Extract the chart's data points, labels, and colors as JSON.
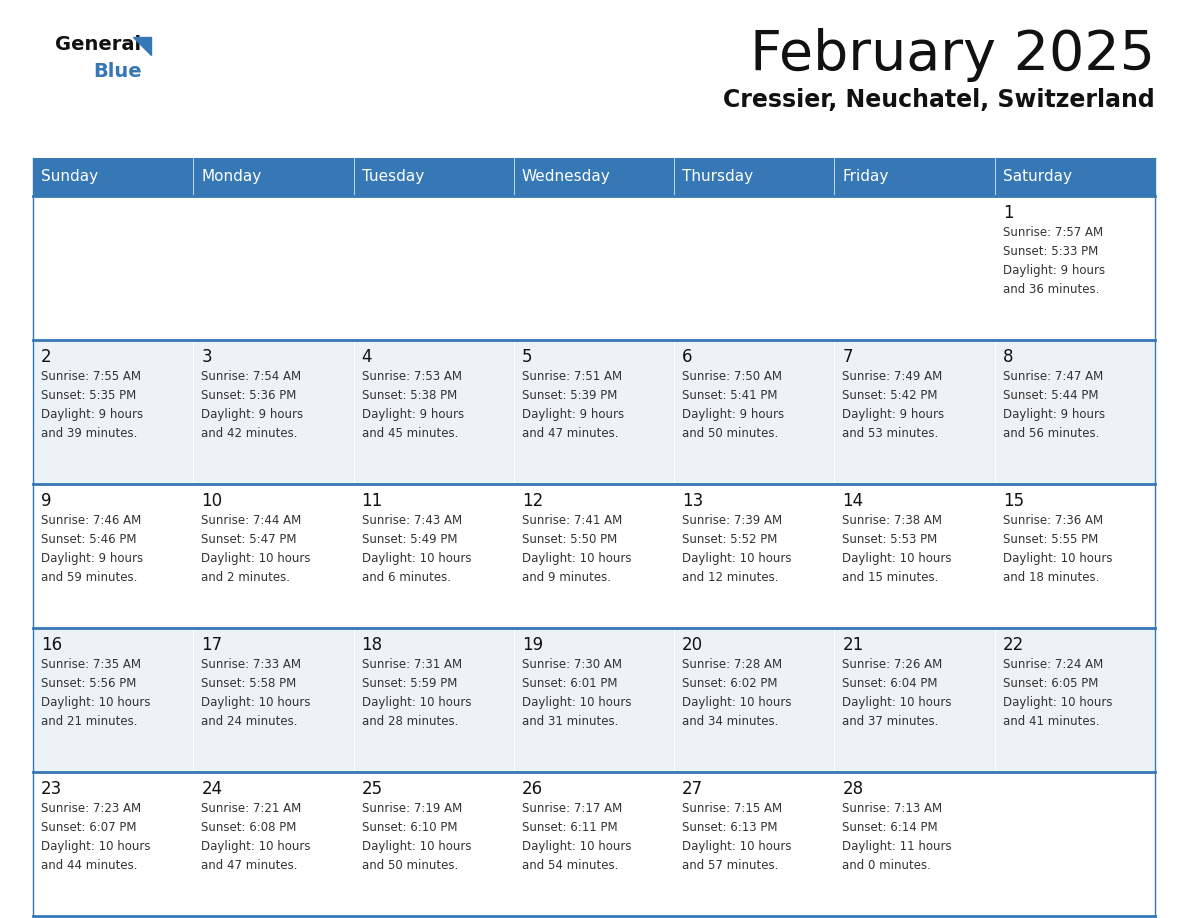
{
  "title": "February 2025",
  "subtitle": "Cressier, Neuchatel, Switzerland",
  "header_color": "#3578b5",
  "header_text_color": "#ffffff",
  "row_bg_odd": "#ffffff",
  "row_bg_even": "#edf2f7",
  "border_color": "#3578b5",
  "days_of_week": [
    "Sunday",
    "Monday",
    "Tuesday",
    "Wednesday",
    "Thursday",
    "Friday",
    "Saturday"
  ],
  "title_color": "#111111",
  "subtitle_color": "#111111",
  "day_number_color": "#111111",
  "info_color": "#333333",
  "logo_general_color": "#111111",
  "logo_blue_color": "#3578b5",
  "logo_triangle_color": "#3578b5",
  "calendar_data": [
    [
      {
        "day": "",
        "info": ""
      },
      {
        "day": "",
        "info": ""
      },
      {
        "day": "",
        "info": ""
      },
      {
        "day": "",
        "info": ""
      },
      {
        "day": "",
        "info": ""
      },
      {
        "day": "",
        "info": ""
      },
      {
        "day": "1",
        "info": "Sunrise: 7:57 AM\nSunset: 5:33 PM\nDaylight: 9 hours\nand 36 minutes."
      }
    ],
    [
      {
        "day": "2",
        "info": "Sunrise: 7:55 AM\nSunset: 5:35 PM\nDaylight: 9 hours\nand 39 minutes."
      },
      {
        "day": "3",
        "info": "Sunrise: 7:54 AM\nSunset: 5:36 PM\nDaylight: 9 hours\nand 42 minutes."
      },
      {
        "day": "4",
        "info": "Sunrise: 7:53 AM\nSunset: 5:38 PM\nDaylight: 9 hours\nand 45 minutes."
      },
      {
        "day": "5",
        "info": "Sunrise: 7:51 AM\nSunset: 5:39 PM\nDaylight: 9 hours\nand 47 minutes."
      },
      {
        "day": "6",
        "info": "Sunrise: 7:50 AM\nSunset: 5:41 PM\nDaylight: 9 hours\nand 50 minutes."
      },
      {
        "day": "7",
        "info": "Sunrise: 7:49 AM\nSunset: 5:42 PM\nDaylight: 9 hours\nand 53 minutes."
      },
      {
        "day": "8",
        "info": "Sunrise: 7:47 AM\nSunset: 5:44 PM\nDaylight: 9 hours\nand 56 minutes."
      }
    ],
    [
      {
        "day": "9",
        "info": "Sunrise: 7:46 AM\nSunset: 5:46 PM\nDaylight: 9 hours\nand 59 minutes."
      },
      {
        "day": "10",
        "info": "Sunrise: 7:44 AM\nSunset: 5:47 PM\nDaylight: 10 hours\nand 2 minutes."
      },
      {
        "day": "11",
        "info": "Sunrise: 7:43 AM\nSunset: 5:49 PM\nDaylight: 10 hours\nand 6 minutes."
      },
      {
        "day": "12",
        "info": "Sunrise: 7:41 AM\nSunset: 5:50 PM\nDaylight: 10 hours\nand 9 minutes."
      },
      {
        "day": "13",
        "info": "Sunrise: 7:39 AM\nSunset: 5:52 PM\nDaylight: 10 hours\nand 12 minutes."
      },
      {
        "day": "14",
        "info": "Sunrise: 7:38 AM\nSunset: 5:53 PM\nDaylight: 10 hours\nand 15 minutes."
      },
      {
        "day": "15",
        "info": "Sunrise: 7:36 AM\nSunset: 5:55 PM\nDaylight: 10 hours\nand 18 minutes."
      }
    ],
    [
      {
        "day": "16",
        "info": "Sunrise: 7:35 AM\nSunset: 5:56 PM\nDaylight: 10 hours\nand 21 minutes."
      },
      {
        "day": "17",
        "info": "Sunrise: 7:33 AM\nSunset: 5:58 PM\nDaylight: 10 hours\nand 24 minutes."
      },
      {
        "day": "18",
        "info": "Sunrise: 7:31 AM\nSunset: 5:59 PM\nDaylight: 10 hours\nand 28 minutes."
      },
      {
        "day": "19",
        "info": "Sunrise: 7:30 AM\nSunset: 6:01 PM\nDaylight: 10 hours\nand 31 minutes."
      },
      {
        "day": "20",
        "info": "Sunrise: 7:28 AM\nSunset: 6:02 PM\nDaylight: 10 hours\nand 34 minutes."
      },
      {
        "day": "21",
        "info": "Sunrise: 7:26 AM\nSunset: 6:04 PM\nDaylight: 10 hours\nand 37 minutes."
      },
      {
        "day": "22",
        "info": "Sunrise: 7:24 AM\nSunset: 6:05 PM\nDaylight: 10 hours\nand 41 minutes."
      }
    ],
    [
      {
        "day": "23",
        "info": "Sunrise: 7:23 AM\nSunset: 6:07 PM\nDaylight: 10 hours\nand 44 minutes."
      },
      {
        "day": "24",
        "info": "Sunrise: 7:21 AM\nSunset: 6:08 PM\nDaylight: 10 hours\nand 47 minutes."
      },
      {
        "day": "25",
        "info": "Sunrise: 7:19 AM\nSunset: 6:10 PM\nDaylight: 10 hours\nand 50 minutes."
      },
      {
        "day": "26",
        "info": "Sunrise: 7:17 AM\nSunset: 6:11 PM\nDaylight: 10 hours\nand 54 minutes."
      },
      {
        "day": "27",
        "info": "Sunrise: 7:15 AM\nSunset: 6:13 PM\nDaylight: 10 hours\nand 57 minutes."
      },
      {
        "day": "28",
        "info": "Sunrise: 7:13 AM\nSunset: 6:14 PM\nDaylight: 11 hours\nand 0 minutes."
      },
      {
        "day": "",
        "info": ""
      }
    ]
  ]
}
